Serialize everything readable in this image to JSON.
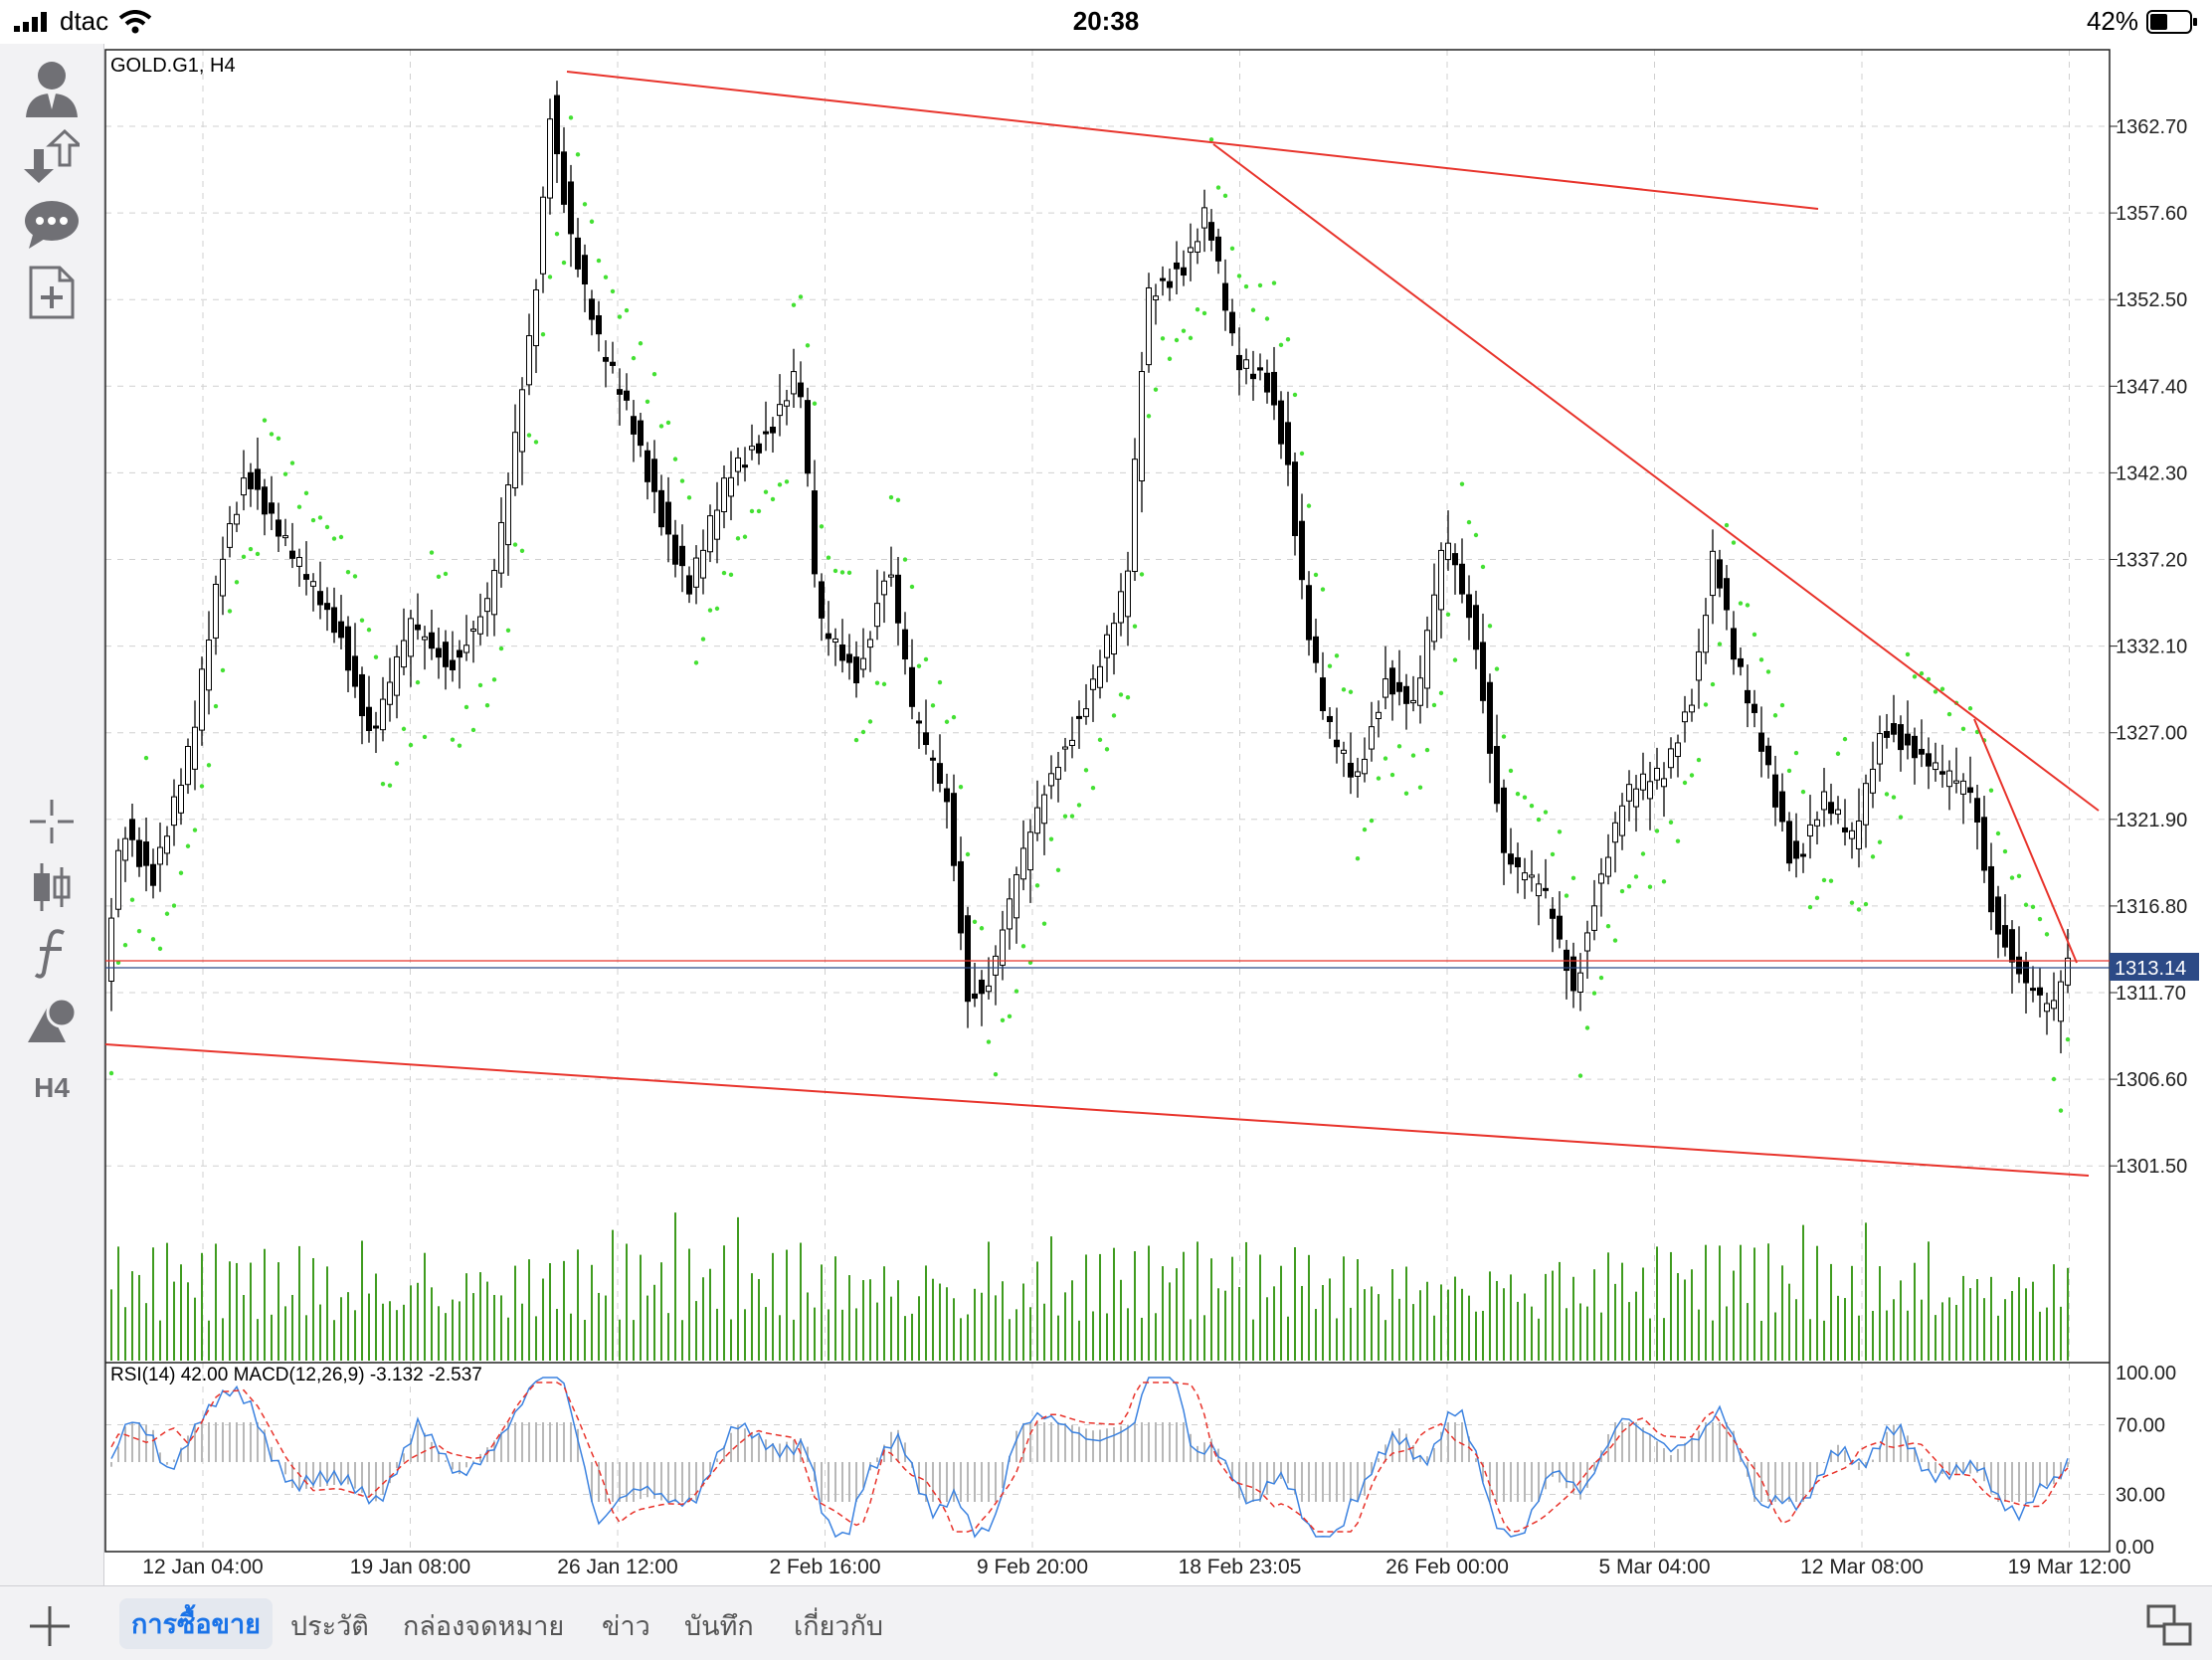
{
  "status_bar": {
    "carrier": "dtac",
    "time": "20:38",
    "battery": "42%"
  },
  "chart": {
    "symbol_label": "GOLD.G1, H4",
    "current_price_label": "1313.14",
    "indicator_label": "RSI(14) 42.00 MACD(12,26,9) -3.132 -2.537",
    "price_axis": [
      "1362.70",
      "1357.60",
      "1352.50",
      "1347.40",
      "1342.30",
      "1337.20",
      "1332.10",
      "1327.00",
      "1321.90",
      "1316.80",
      "1311.70",
      "1306.60",
      "1301.50"
    ],
    "indicator_axis": [
      "100.00",
      "70.00",
      "30.00",
      "0.00"
    ],
    "time_axis": [
      "12 Jan 04:00",
      "19 Jan 08:00",
      "26 Jan 12:00",
      "2 Feb 16:00",
      "9 Feb 20:00",
      "18 Feb 23:05",
      "26 Feb 00:00",
      "5 Mar 04:00",
      "12 Mar 08:00",
      "19 Mar 12:00"
    ],
    "colors": {
      "trendline": "#e8332b",
      "parabolic_sar": "#44e033",
      "volume": "#3f9b1f",
      "rsi": "#3b82e0",
      "macd_signal": "#e8332b",
      "price_tag_bg": "#2c4a86"
    }
  },
  "sidebar": {
    "icons": [
      "account-icon",
      "trade-arrows-icon",
      "chat-icon",
      "new-document-icon",
      "crosshair-icon",
      "chart-type-icon",
      "indicators-icon",
      "objects-icon",
      "timeframe-icon"
    ],
    "timeframe": "H4"
  },
  "bottom_tabs": [
    {
      "label": "การซื้อขาย",
      "active": true
    },
    {
      "label": "ประวัติ"
    },
    {
      "label": "กล่องจดหมาย"
    },
    {
      "label": "ข่าว"
    },
    {
      "label": "บันทึก"
    },
    {
      "label": "เกี่ยวกับ"
    }
  ]
}
